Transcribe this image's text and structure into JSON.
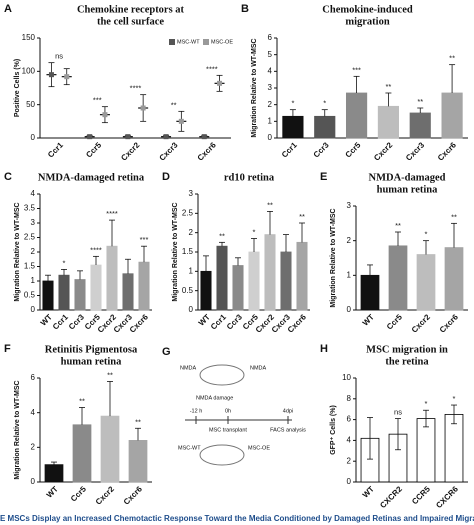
{
  "chart_data": [
    {
      "panel": "A",
      "type": "dot",
      "title": [
        "Chemokine receptors at",
        "the cell surface"
      ],
      "ylabel": "Positive Cells (%)",
      "ylim": [
        0,
        150
      ],
      "yticks": [
        0,
        50,
        100,
        150
      ],
      "categories": [
        "Ccr1",
        "Ccr5",
        "Cxcr2",
        "Cxcr3",
        "Cxcr6"
      ],
      "series": [
        {
          "name": "MSC-WT",
          "color": "#555555",
          "values": [
            95,
            2,
            2,
            2,
            2
          ],
          "errors": [
            18,
            2,
            2,
            2,
            2
          ]
        },
        {
          "name": "MSC-OE",
          "color": "#999999",
          "values": [
            92,
            35,
            45,
            25,
            82
          ],
          "errors": [
            12,
            12,
            20,
            15,
            12
          ]
        }
      ],
      "annotations": [
        "ns",
        "***",
        "****",
        "**",
        "****"
      ]
    },
    {
      "panel": "B",
      "type": "bar",
      "title": [
        "Chemokine-induced",
        "migration"
      ],
      "ylabel": "Migration Relative to WT-MSC",
      "ylim": [
        0,
        6
      ],
      "yticks": [
        0,
        1,
        2,
        3,
        4,
        5,
        6
      ],
      "categories": [
        "Ccr1",
        "Ccr3",
        "Ccr5",
        "Cxcr2",
        "Cxcr3",
        "Cxcr6"
      ],
      "values": [
        1.3,
        1.3,
        2.7,
        1.9,
        1.5,
        2.7
      ],
      "errors": [
        0.4,
        0.4,
        1.0,
        0.8,
        0.3,
        1.7
      ],
      "colors": [
        "#111111",
        "#555555",
        "#8a8a8a",
        "#bdbdbd",
        "#6e6e6e",
        "#a5a5a5"
      ],
      "annotations": [
        "*",
        "*",
        "***",
        "**",
        "**",
        "**"
      ]
    },
    {
      "panel": "C",
      "type": "bar",
      "title": [
        "NMDA-damaged retina"
      ],
      "ylabel": "Migration Relative to WT-MSC",
      "ylim": [
        0,
        4
      ],
      "yticks": [
        0,
        0.5,
        1,
        1.5,
        2,
        2.5,
        3,
        3.5,
        4
      ],
      "categories": [
        "WT",
        "Ccr1",
        "Ccr3",
        "Ccr5",
        "Cxcr2",
        "Cxcr3",
        "Cxcr6"
      ],
      "values": [
        1.0,
        1.2,
        1.05,
        1.55,
        2.2,
        1.25,
        1.65
      ],
      "errors": [
        0.2,
        0.2,
        0.3,
        0.3,
        0.9,
        0.5,
        0.55
      ],
      "colors": [
        "#111111",
        "#555555",
        "#8a8a8a",
        "#cfcfcf",
        "#bdbdbd",
        "#6e6e6e",
        "#a5a5a5"
      ],
      "annotations": [
        null,
        "*",
        null,
        "****",
        "****",
        null,
        "***"
      ]
    },
    {
      "panel": "D",
      "type": "bar",
      "title": [
        "rd10 retina"
      ],
      "ylabel": "Migration Relative to WT-MSC",
      "ylim": [
        0,
        3
      ],
      "yticks": [
        0,
        0.5,
        1,
        1.5,
        2,
        2.5,
        3
      ],
      "categories": [
        "WT",
        "Ccr1",
        "Ccr3",
        "Ccr5",
        "Cxcr2",
        "Cxcr3",
        "Cxcr6"
      ],
      "values": [
        1.0,
        1.65,
        1.15,
        1.5,
        1.95,
        1.5,
        1.75
      ],
      "errors": [
        0.4,
        0.1,
        0.2,
        0.35,
        0.6,
        0.45,
        0.5
      ],
      "colors": [
        "#111111",
        "#555555",
        "#8a8a8a",
        "#cfcfcf",
        "#bdbdbd",
        "#6e6e6e",
        "#a5a5a5"
      ],
      "annotations": [
        null,
        "**",
        null,
        "*",
        "**",
        null,
        "**"
      ]
    },
    {
      "panel": "E",
      "type": "bar",
      "title": [
        "NMDA-damaged",
        "human retina"
      ],
      "ylabel": "Migration Relative to WT-MSC",
      "ylim": [
        0,
        3
      ],
      "yticks": [
        0,
        1,
        2,
        3
      ],
      "categories": [
        "WT",
        "Ccr5",
        "Cxcr2",
        "Cxcr6"
      ],
      "values": [
        1.0,
        1.85,
        1.6,
        1.8
      ],
      "errors": [
        0.3,
        0.4,
        0.4,
        0.7
      ],
      "colors": [
        "#111111",
        "#8a8a8a",
        "#bdbdbd",
        "#a5a5a5"
      ],
      "annotations": [
        null,
        "**",
        "*",
        "**"
      ]
    },
    {
      "panel": "F",
      "type": "bar",
      "title": [
        "Retinitis Pigmentosa",
        "human retina"
      ],
      "ylabel": "Migration Relative to WT-MSC",
      "ylim": [
        0,
        6
      ],
      "yticks": [
        0,
        2,
        4,
        6
      ],
      "categories": [
        "WT",
        "Ccr5",
        "Cxcr2",
        "Cxcr6"
      ],
      "values": [
        1.0,
        3.3,
        3.8,
        2.4
      ],
      "errors": [
        0.15,
        1.0,
        2.0,
        0.7
      ],
      "colors": [
        "#111111",
        "#8a8a8a",
        "#bdbdbd",
        "#a5a5a5"
      ],
      "annotations": [
        null,
        "**",
        "**",
        "**"
      ]
    },
    {
      "panel": "H",
      "type": "bar",
      "title": [
        "MSC migration in",
        "the retina"
      ],
      "ylabel": "GFP⁺ Cells (%)",
      "ylim": [
        0,
        10
      ],
      "yticks": [
        0,
        2,
        4,
        6,
        8,
        10
      ],
      "categories": [
        "WT",
        "CXCR2",
        "CCR5",
        "CXCR6"
      ],
      "values": [
        4.2,
        4.6,
        6.1,
        6.5
      ],
      "errors": [
        2.0,
        1.5,
        0.8,
        0.9
      ],
      "colors": [
        "#ffffff",
        "#ffffff",
        "#ffffff",
        "#ffffff"
      ],
      "edgecolor": "#000000",
      "annotations": [
        null,
        "ns",
        "*",
        "*"
      ]
    }
  ],
  "diagram": {
    "panel": "G",
    "labels": [
      "NMDA",
      "NMDA",
      "NMDA damage",
      "-12 h",
      "0h",
      "4dpi",
      "MSC transplant",
      "FACS analysis",
      "MSC-WT",
      "MSC-OE"
    ]
  },
  "caption": "E MSCs Display an Increased Chemotactic Response Toward the Media Conditioned by Damaged Retinas and Impaired Migration"
}
